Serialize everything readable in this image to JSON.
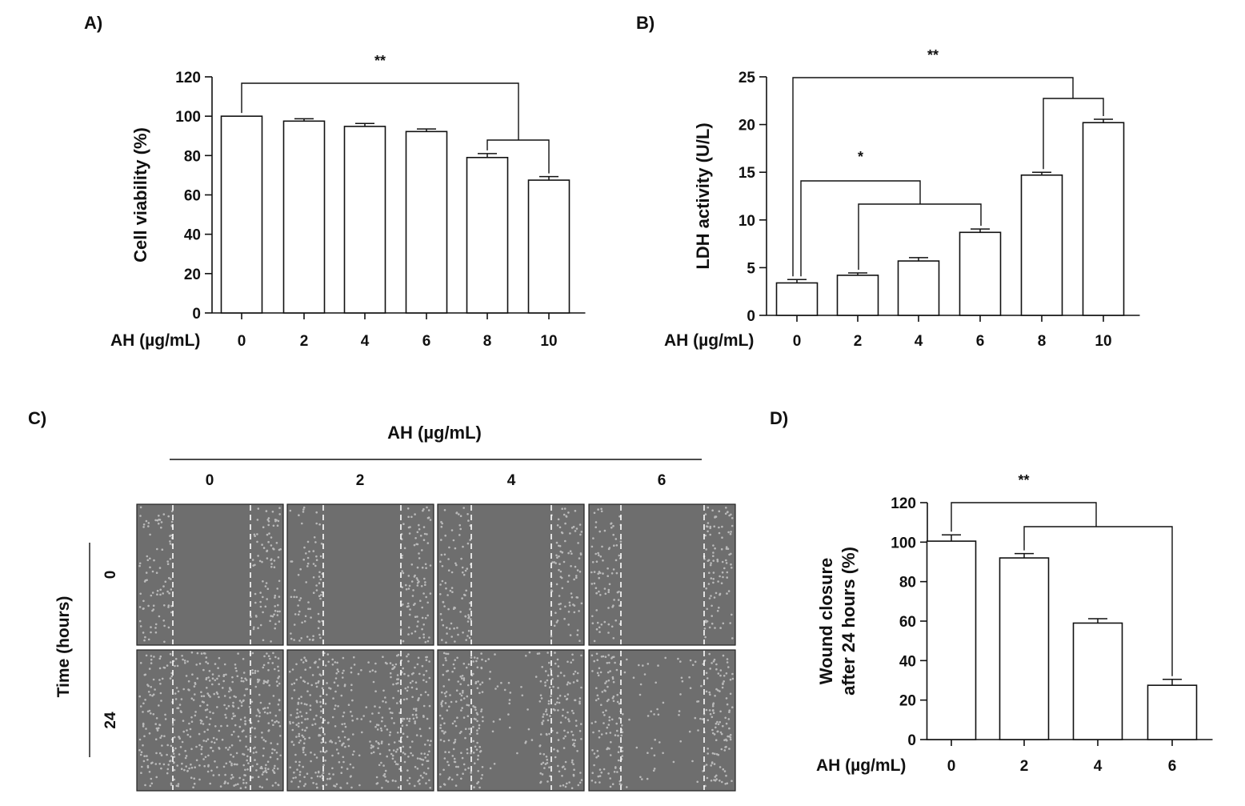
{
  "figure": {
    "panel_labels": [
      "A)",
      "B)",
      "C)",
      "D)"
    ]
  },
  "chart_data": [
    {
      "panel": "A)",
      "type": "bar",
      "xlabel": "AH (µg/mL)",
      "ylabel": "Cell viability (%)",
      "categories": [
        "0",
        "2",
        "4",
        "6",
        "8",
        "10"
      ],
      "values": [
        100,
        97.5,
        94.8,
        92.2,
        79.0,
        67.5
      ],
      "errors": [
        0,
        1.2,
        1.5,
        1.3,
        2.0,
        1.8
      ],
      "ylim": [
        0,
        120
      ],
      "yticks": [
        "0",
        "20",
        "40",
        "60",
        "80",
        "100",
        "120"
      ],
      "significance": [
        {
          "label": "**",
          "from": "0",
          "to": [
            "8",
            "10"
          ]
        }
      ]
    },
    {
      "panel": "B)",
      "type": "bar",
      "xlabel": "AH (µg/mL)",
      "ylabel": "LDH activity (U/L)",
      "categories": [
        "0",
        "2",
        "4",
        "6",
        "8",
        "10"
      ],
      "values": [
        3.4,
        4.2,
        5.7,
        8.7,
        14.7,
        20.2
      ],
      "errors": [
        0.35,
        0.25,
        0.35,
        0.35,
        0.3,
        0.35
      ],
      "ylim": [
        0,
        25
      ],
      "yticks": [
        "0",
        "5",
        "10",
        "15",
        "20",
        "25"
      ],
      "significance": [
        {
          "label": "**",
          "from": "0",
          "to": [
            "8",
            "10"
          ]
        },
        {
          "label": "*",
          "from": "0",
          "to": [
            "2",
            "6"
          ]
        }
      ]
    },
    {
      "panel": "D)",
      "type": "bar",
      "xlabel": "AH (µg/mL)",
      "ylabel": [
        "Wound closure",
        "after 24 hours (%)"
      ],
      "categories": [
        "0",
        "2",
        "4",
        "6"
      ],
      "values": [
        100.5,
        92.0,
        59.0,
        27.5
      ],
      "errors": [
        3.2,
        2.2,
        2.2,
        3.0
      ],
      "ylim": [
        0,
        120
      ],
      "yticks": [
        "0",
        "20",
        "40",
        "60",
        "80",
        "100",
        "120"
      ],
      "significance": [
        {
          "label": "**",
          "from": "0",
          "to": [
            "2",
            "6"
          ]
        }
      ]
    }
  ],
  "micrographs": {
    "header": "AH (µg/mL)",
    "columns": [
      "0",
      "2",
      "4",
      "6"
    ],
    "row_axis_label": "Time (hours)",
    "rows": [
      "0",
      "24"
    ]
  }
}
